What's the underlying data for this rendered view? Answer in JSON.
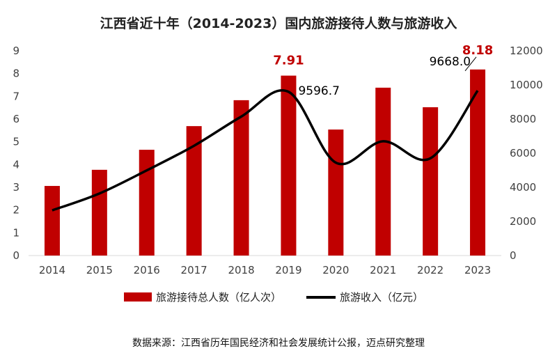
{
  "chart_data": {
    "type": "bar",
    "title": "江西省近十年（2014-2023）国内旅游接待人数与旅游收入",
    "categories": [
      "2014",
      "2015",
      "2016",
      "2017",
      "2018",
      "2019",
      "2020",
      "2021",
      "2022",
      "2023"
    ],
    "series": [
      {
        "name": "旅游接待总人数（亿人次）",
        "type": "bar",
        "axis": "left",
        "color": "#C00000",
        "values": [
          3.06,
          3.77,
          4.65,
          5.69,
          6.83,
          7.91,
          5.54,
          7.38,
          6.52,
          8.18
        ]
      },
      {
        "name": "旅游收入（亿元）",
        "type": "line",
        "axis": "right",
        "color": "#000000",
        "values": [
          2650,
          3638,
          4993,
          6435,
          8145,
          9596.7,
          5445,
          6700,
          5700,
          9668.0
        ]
      }
    ],
    "left_axis": {
      "ylim": [
        0,
        9
      ],
      "ticks": [
        "0",
        "1",
        "2",
        "3",
        "4",
        "5",
        "6",
        "7",
        "8",
        "9"
      ]
    },
    "right_axis": {
      "ylim": [
        0,
        12000
      ],
      "ticks": [
        "0",
        "2000",
        "4000",
        "6000",
        "8000",
        "10000",
        "12000"
      ]
    },
    "data_labels": [
      {
        "series": 0,
        "index": 5,
        "text": "7.91"
      },
      {
        "series": 0,
        "index": 9,
        "text": "8.18"
      },
      {
        "series": 1,
        "index": 5,
        "text": "9596.7"
      },
      {
        "series": 1,
        "index": 9,
        "text": "9668.0"
      }
    ],
    "legend_position": "bottom",
    "source": "数据来源：江西省历年国民经济和社会发展统计公报，迈点研究整理"
  }
}
